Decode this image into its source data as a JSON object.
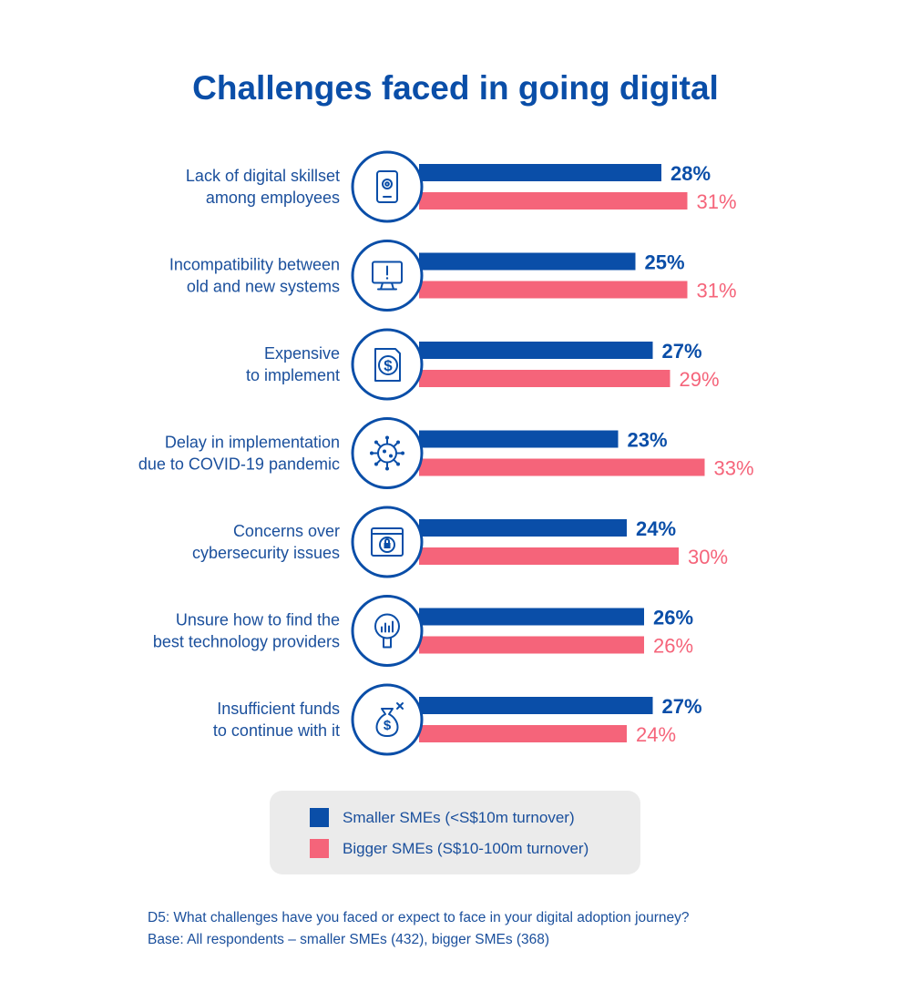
{
  "colors": {
    "small": "#0a4ea8",
    "big": "#f5647a",
    "text": "#1a4f9c",
    "legend_bg": "#ebebeb"
  },
  "chart_data": {
    "type": "bar",
    "orientation": "horizontal",
    "title": "Challenges faced in going digital",
    "categories": [
      {
        "lines": [
          "Lack of digital skillset",
          "among employees"
        ],
        "icon": "tablet-gear-icon"
      },
      {
        "lines": [
          "Incompatibility between",
          "old and new systems"
        ],
        "icon": "monitor-warning-icon"
      },
      {
        "lines": [
          "Expensive",
          "to implement"
        ],
        "icon": "dollar-document-icon"
      },
      {
        "lines": [
          "Delay in implementation",
          "due to COVID-19 pandemic"
        ],
        "icon": "virus-icon"
      },
      {
        "lines": [
          "Concerns over",
          "cybersecurity issues"
        ],
        "icon": "browser-lock-icon"
      },
      {
        "lines": [
          "Unsure how to find the",
          "best technology providers"
        ],
        "icon": "magnifier-chart-icon"
      },
      {
        "lines": [
          "Insufficient funds",
          "to continue with it"
        ],
        "icon": "money-bag-x-icon"
      }
    ],
    "series": [
      {
        "name": "Smaller SMEs (<S$10m turnover)",
        "values": [
          28,
          25,
          27,
          23,
          24,
          26,
          27
        ]
      },
      {
        "name": "Bigger SMEs (S$10-100m turnover)",
        "values": [
          31,
          31,
          29,
          33,
          30,
          26,
          24
        ]
      }
    ],
    "value_suffix": "%",
    "legend_position": "bottom"
  },
  "legend": {
    "small_label": "Smaller SMEs (<S$10m turnover)",
    "big_label": "Bigger SMEs (S$10-100m turnover)"
  },
  "footnote": {
    "question": "D5: What challenges have you faced or expect to face in your digital adoption journey?",
    "base": "Base: All respondents – smaller SMEs (432), bigger SMEs (368)"
  }
}
